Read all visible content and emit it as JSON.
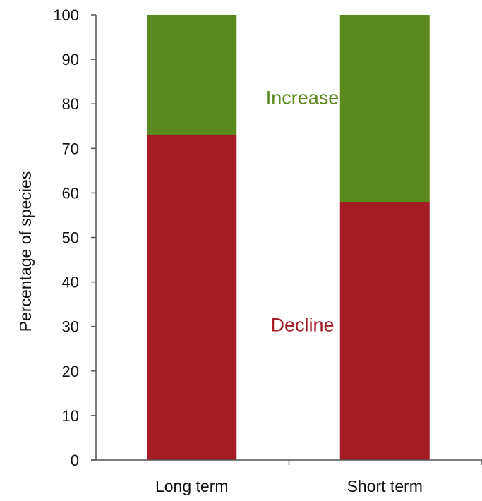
{
  "chart_data": {
    "type": "bar",
    "stacked": true,
    "categories": [
      "Long term",
      "Short term"
    ],
    "series": [
      {
        "key": "decline",
        "values": [
          73,
          58
        ],
        "color": "#a31c24"
      },
      {
        "key": "increase",
        "values": [
          27,
          42
        ],
        "color": "#5a8a1d"
      }
    ],
    "annotations": [
      {
        "text": "Increase",
        "series": "increase",
        "color": "#5a8a1d"
      },
      {
        "text": "Decline",
        "series": "decline",
        "color": "#a31c24"
      }
    ],
    "ylabel": "Percentage of species",
    "xlabel": "",
    "ylim": [
      0,
      100
    ],
    "yticks": [
      0,
      10,
      20,
      30,
      40,
      50,
      60,
      70,
      80,
      90,
      100
    ],
    "grid": false,
    "legend": "none"
  }
}
